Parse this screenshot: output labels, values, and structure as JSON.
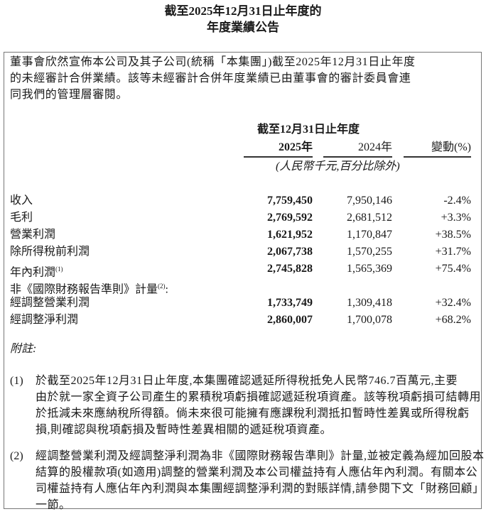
{
  "title": {
    "line1": "截至2025年12月31日止年度的",
    "line2": "年度業績公告"
  },
  "intro": {
    "lines": [
      "董事會欣然宣佈本公司及其子公司(統稱「本集團」)截至2025年12月31日止年度",
      "的未經審計合併業績。該等未經審計合併年度業績已由董事會的審計委員會連",
      "同我們的管理層審閱。"
    ]
  },
  "table": {
    "period_header": "截至12月31日止年度",
    "columns": [
      "2025年",
      "2024年",
      "變動(%)"
    ],
    "unit_note": "(人民幣千元,百分比除外)",
    "rows": [
      {
        "label": "收入",
        "sup": "",
        "v2025": "7,759,450",
        "v2024": "7,950,146",
        "change": "-2.4%"
      },
      {
        "label": "毛利",
        "sup": "",
        "v2025": "2,769,592",
        "v2024": "2,681,512",
        "change": "+3.3%"
      },
      {
        "label": "營業利潤",
        "sup": "",
        "v2025": "1,621,952",
        "v2024": "1,170,847",
        "change": "+38.5%"
      },
      {
        "label": "除所得稅前利潤",
        "sup": "",
        "v2025": "2,067,738",
        "v2024": "1,570,255",
        "change": "+31.7%"
      },
      {
        "label": "年內利潤",
        "sup": "(1)",
        "v2025": "2,745,828",
        "v2024": "1,565,369",
        "change": "+75.4%"
      }
    ],
    "non_ifrs_header": {
      "label": "非《國際財務報告準則》計量",
      "sup": "(2)",
      "suffix": ":"
    },
    "non_ifrs_rows": [
      {
        "label": "經調整營業利潤",
        "v2025": "1,733,749",
        "v2024": "1,309,418",
        "change": "+32.4%"
      },
      {
        "label": "經調整淨利潤",
        "v2025": "2,860,007",
        "v2024": "1,700,078",
        "change": "+68.2%"
      }
    ]
  },
  "notes": {
    "heading": "附註:",
    "items": [
      {
        "marker": "(1)",
        "lines": [
          "於截至2025年12月31日止年度,本集團確認遞延所得稅抵免人民幣746.7百萬元,主要",
          "由於就一家全資子公司產生的累積稅項虧損確認遞延稅項資產。該等稅項虧損可結轉用",
          "於抵減未來應納稅所得額。倘未來很可能擁有應課稅利潤抵扣暫時性差異或所得稅虧",
          "損,則確認與稅項虧損及暫時性差異相關的遞延稅項資產。"
        ]
      },
      {
        "marker": "(2)",
        "lines": [
          "經調整營業利潤及經調整淨利潤為非《國際財務報告準則》計量,並被定義為經加回股本",
          "結算的股權款項(如適用)調整的營業利潤及本公司權益持有人應佔年內利潤。有關本公",
          "司權益持有人應佔年內利潤與本集團經調整淨利潤的對賬詳情,請參閱下文「財務回顧」",
          "一節。"
        ]
      }
    ]
  }
}
